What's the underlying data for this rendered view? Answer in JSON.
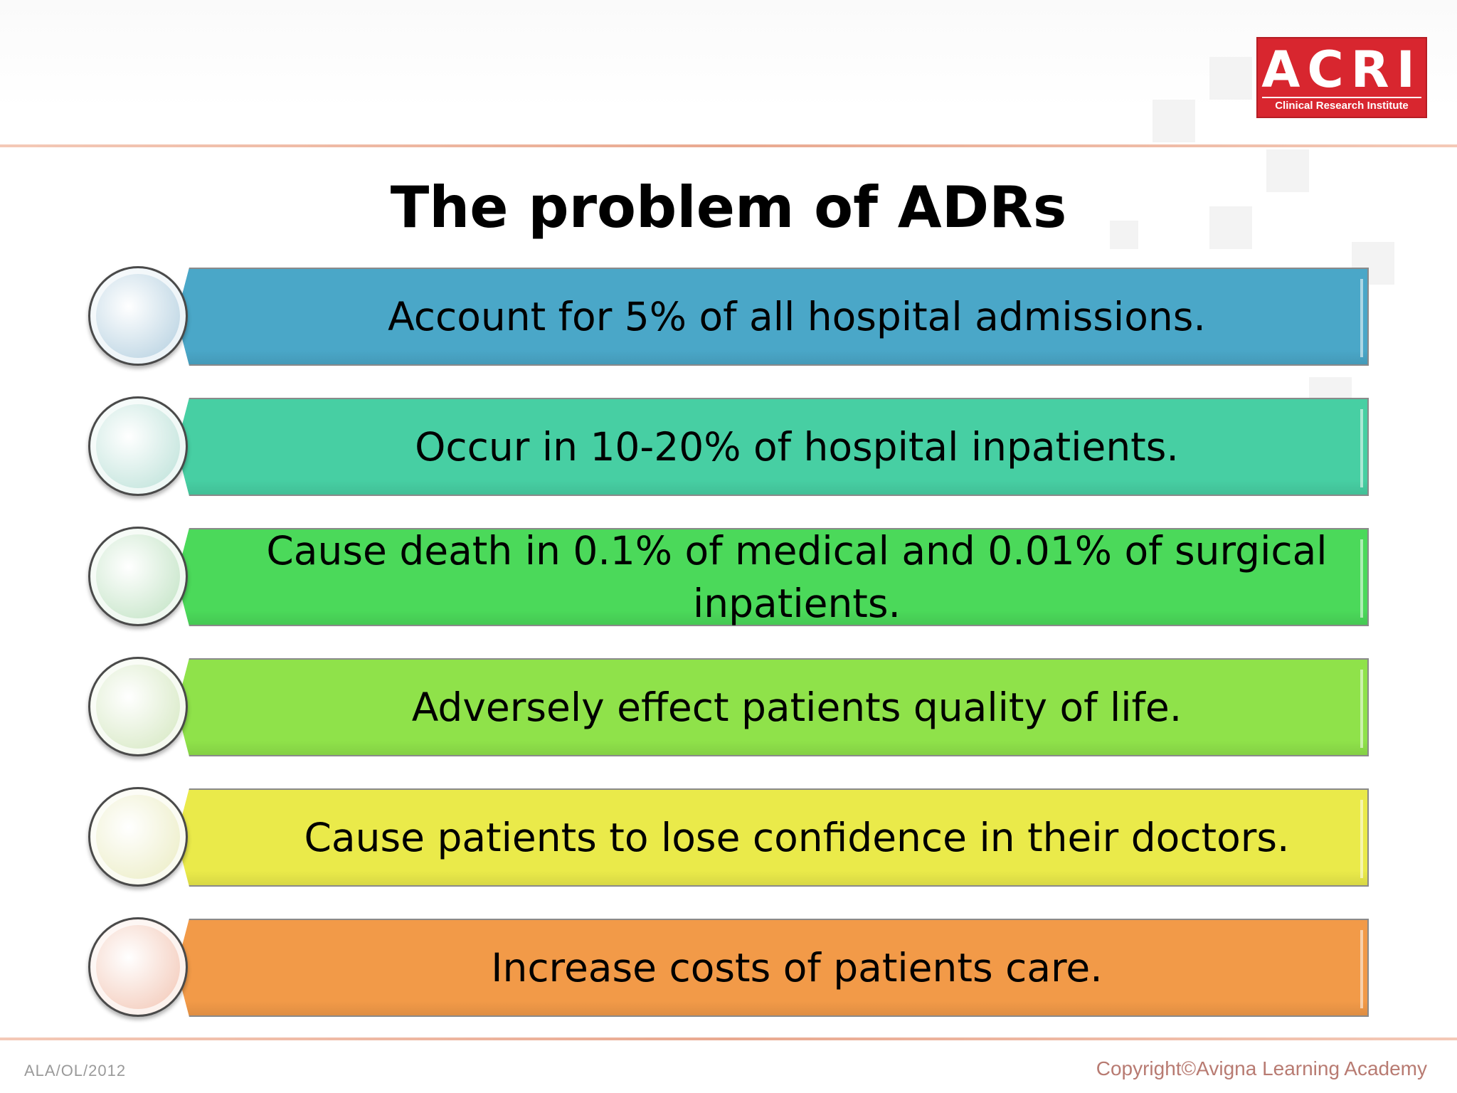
{
  "logo": {
    "main": "ACRI",
    "subtitle": "Clinical Research Institute"
  },
  "title": "The problem of ADRs",
  "items": [
    {
      "text": "Account for 5% of all hospital admissions.",
      "bar_color": "#4aa7c8",
      "circle_color": "#c3d9e6"
    },
    {
      "text": "Occur in 10-20% of hospital inpatients.",
      "bar_color": "#47cfa3",
      "circle_color": "#c9e7e0"
    },
    {
      "text": "Cause death in 0.1% of medical and 0.01% of surgical inpatients.",
      "bar_color": "#4bd95a",
      "circle_color": "#cde8cf"
    },
    {
      "text": "Adversely effect patients quality of life.",
      "bar_color": "#8fe24a",
      "circle_color": "#ddeccd"
    },
    {
      "text": "Cause patients to lose confidence in their doctors.",
      "bar_color": "#eaea4a",
      "circle_color": "#eff0cf"
    },
    {
      "text": "Increase costs of patients care.",
      "bar_color": "#f29a48",
      "circle_color": "#f5d2c4"
    }
  ],
  "footer": {
    "left": "ALA/OL/2012",
    "right": "Copyright©Avigna Learning Academy"
  }
}
